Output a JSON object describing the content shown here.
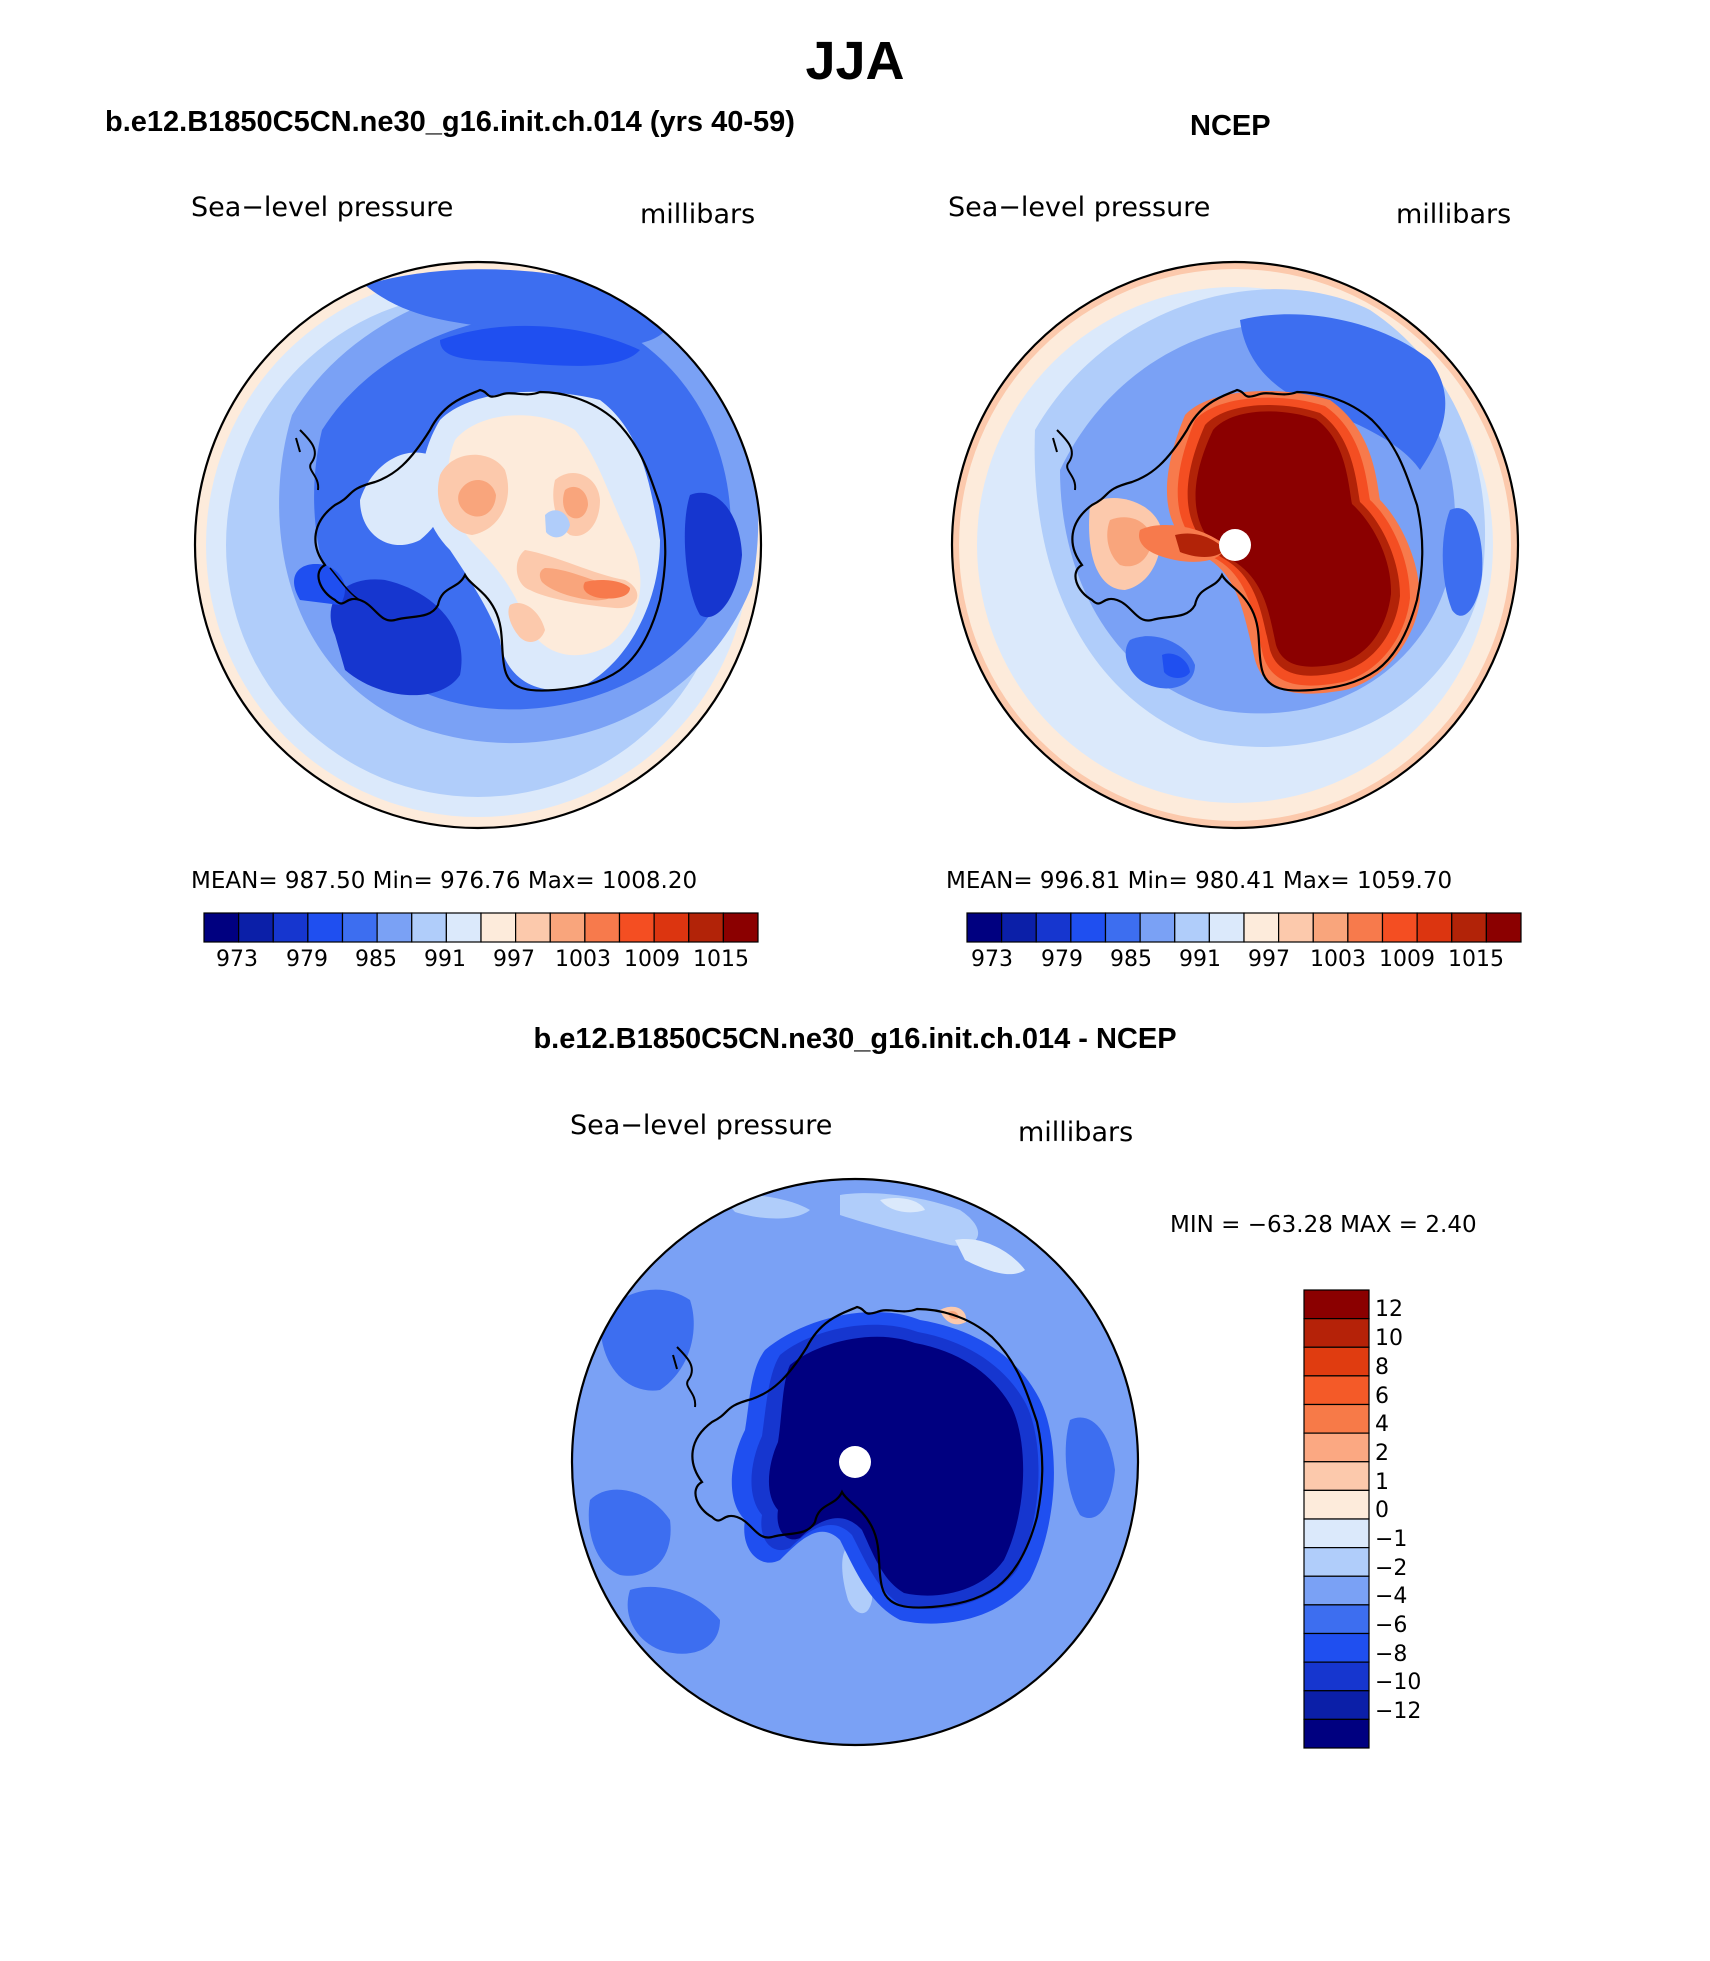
{
  "title": "JJA",
  "panels": [
    {
      "title": "b.e12.B1850C5CN.ne30_g16.init.ch.014 (yrs 40-59)",
      "variable": "Sea−level pressure",
      "units": "millibars",
      "stats": "MEAN=  987.50    Min=  976.76    Max=  1008.20",
      "colorbar_ticks": [
        "973",
        "979",
        "985",
        "991",
        "997",
        "1003",
        "1009",
        "1015"
      ]
    },
    {
      "title": "NCEP",
      "variable": "Sea−level pressure",
      "units": "millibars",
      "stats": "MEAN=  996.81    Min=  980.41    Max=  1059.70",
      "colorbar_ticks": [
        "973",
        "979",
        "985",
        "991",
        "997",
        "1003",
        "1009",
        "1015"
      ]
    },
    {
      "title": "b.e12.B1850C5CN.ne30_g16.init.ch.014 - NCEP",
      "variable": "Sea−level pressure",
      "units": "millibars",
      "stats": "MIN =  −63.28  MAX =     2.40",
      "colorbar_ticks": [
        "12",
        "10",
        "8",
        "6",
        "4",
        "2",
        "1",
        "0",
        "−1",
        "−2",
        "−4",
        "−6",
        "−8",
        "−10",
        "−12"
      ]
    }
  ],
  "palette16": [
    "#000080",
    "#0b1fa8",
    "#1636cf",
    "#1f4ff0",
    "#3d6ef0",
    "#7aa1f5",
    "#b0cdfa",
    "#dbe9fb",
    "#fdebdb",
    "#fcc9ac",
    "#f9a57c",
    "#f77a4c",
    "#f44e22",
    "#dc3510",
    "#b22308",
    "#8b0000"
  ],
  "diff_palette": [
    "#8b0000",
    "#b52208",
    "#e03c10",
    "#f45a28",
    "#f77a48",
    "#fba882",
    "#fcc9ac",
    "#fdebdb",
    "#dbe9fb",
    "#b0cdfa",
    "#7aa1f5",
    "#3d6ef0",
    "#1f4ff0",
    "#1636cf",
    "#0b1fa8",
    "#000080"
  ]
}
